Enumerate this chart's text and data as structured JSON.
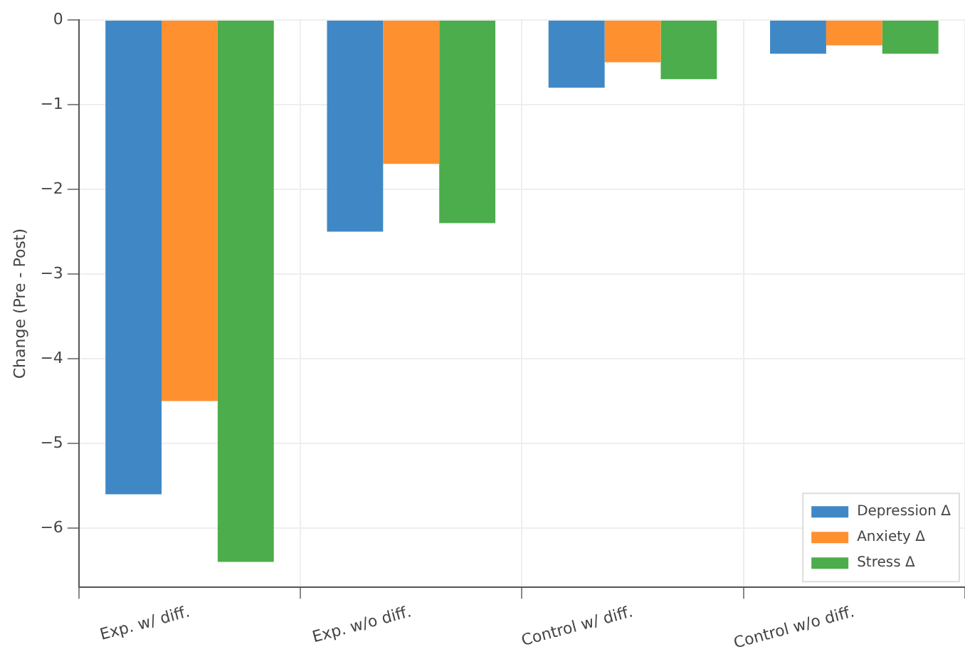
{
  "chart_data": {
    "type": "bar",
    "ylabel": "Change (Pre - Post)",
    "categories": [
      "Exp. w/ diff.",
      "Exp. w/o diff.",
      "Control w/ diff.",
      "Control w/o diff."
    ],
    "series": [
      {
        "name": "Depression Δ",
        "color": "#3f88c5",
        "values": [
          -5.6,
          -2.5,
          -0.8,
          -0.4
        ]
      },
      {
        "name": "Anxiety Δ",
        "color": "#ff9030",
        "values": [
          -4.5,
          -1.7,
          -0.5,
          -0.3
        ]
      },
      {
        "name": "Stress Δ",
        "color": "#4cad4c",
        "values": [
          -6.4,
          -2.4,
          -0.7,
          -0.4
        ]
      }
    ],
    "ylim": [
      -6.7,
      0
    ],
    "yticks": [
      -6,
      -5,
      -4,
      -3,
      -2,
      -1,
      0
    ],
    "grid": true,
    "legend": "bottom right"
  }
}
